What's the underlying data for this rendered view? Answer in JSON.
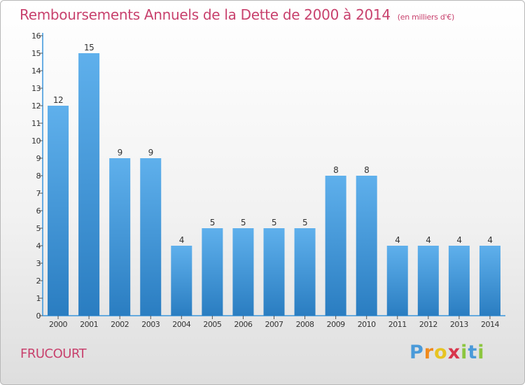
{
  "header": {
    "title": "Remboursements Annuels de la Dette de 2000 à 2014",
    "subtitle": "(en milliers d'€)"
  },
  "footer": {
    "commune": "FRUCOURT",
    "brand": {
      "letters": [
        "P",
        "r",
        "o",
        "x",
        "i",
        "t",
        "i"
      ],
      "colors": [
        "#4a9ad9",
        "#f08a1c",
        "#e7c422",
        "#d8364c",
        "#8cc63f",
        "#4a9ad9",
        "#8cc63f"
      ]
    }
  },
  "chart_data": {
    "type": "bar",
    "categories": [
      "2000",
      "2001",
      "2002",
      "2003",
      "2004",
      "2005",
      "2006",
      "2007",
      "2008",
      "2009",
      "2010",
      "2011",
      "2012",
      "2013",
      "2014"
    ],
    "values": [
      12,
      15,
      9,
      9,
      4,
      5,
      5,
      5,
      5,
      8,
      8,
      4,
      4,
      4,
      4
    ],
    "data_labels": [
      "12",
      "15",
      "9",
      "9",
      "4",
      "5",
      "5",
      "5",
      "5",
      "8",
      "8",
      "4",
      "4",
      "4",
      "4"
    ],
    "yticks": [
      "0",
      "1",
      "2",
      "3",
      "4",
      "5",
      "6",
      "7",
      "8",
      "9",
      "10",
      "11",
      "12",
      "13",
      "14",
      "15",
      "16"
    ],
    "ylim": [
      0,
      16
    ],
    "grid": false,
    "colors": {
      "bar_light": "#5fb0ec",
      "bar_dark": "#2a7dc1",
      "axis": "#3a95dc"
    }
  }
}
